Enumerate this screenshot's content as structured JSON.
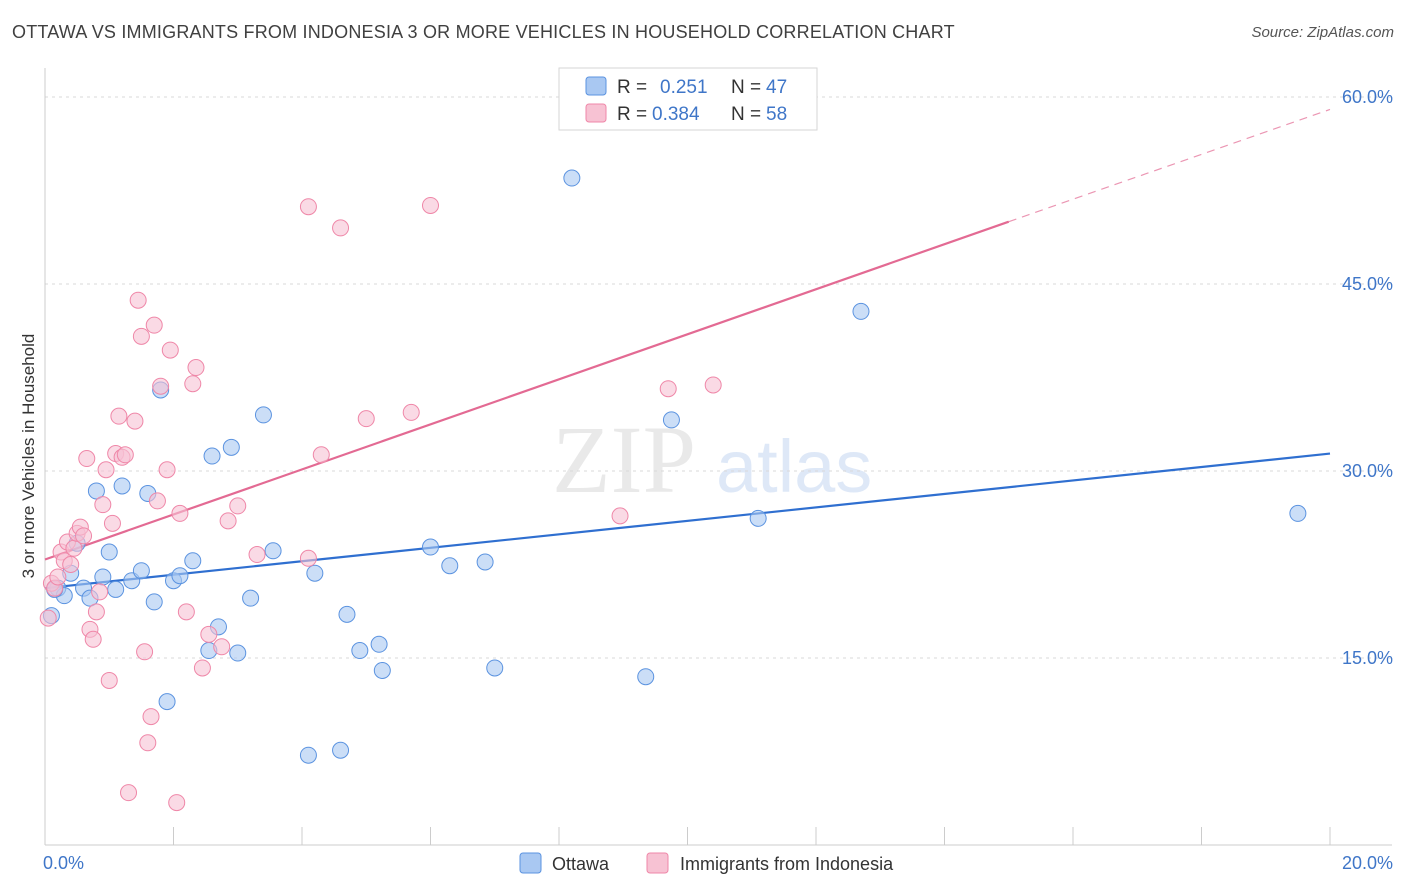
{
  "title": "OTTAWA VS IMMIGRANTS FROM INDONESIA 3 OR MORE VEHICLES IN HOUSEHOLD CORRELATION CHART",
  "source": "Source: ZipAtlas.com",
  "watermark": {
    "zip": "ZIP",
    "atlas": "atlas"
  },
  "colors": {
    "ottawa": "#5b93e0",
    "ottawa_fill": "#a9c8f2",
    "indonesia": "#ef87a8",
    "indonesia_fill": "#f7c2d3",
    "ottawa_line": "#2f6fd0",
    "indonesia_line": "#e36a93",
    "grid": "#d9d9d9",
    "tick_label": "#3f76c8"
  },
  "legend": {
    "rows": [
      {
        "r_label": "R =",
        "r_value": "0.251",
        "n_label": "N =",
        "n_value": "47"
      },
      {
        "r_label": "R =",
        "r_value": "0.384",
        "n_label": "N =",
        "n_value": "58"
      }
    ]
  },
  "chart_data": {
    "type": "scatter",
    "title": "OTTAWA VS IMMIGRANTS FROM INDONESIA 3 OR MORE VEHICLES IN HOUSEHOLD CORRELATION CHART",
    "xlabel": "",
    "ylabel": "3 or more Vehicles in Household",
    "xlim": [
      0,
      20
    ],
    "ylim": [
      0,
      60
    ],
    "x_tick_labels": [
      "0.0%",
      "20.0%"
    ],
    "y_ticks": [
      15,
      30,
      45,
      60
    ],
    "y_tick_labels": [
      "15.0%",
      "30.0%",
      "45.0%",
      "60.0%"
    ],
    "grid": true,
    "legend_position": "bottom-center",
    "series": [
      {
        "name": "Ottawa",
        "r": 0.251,
        "n": 47,
        "trend": {
          "x": [
            0,
            20
          ],
          "y": [
            20.6,
            31.4
          ]
        },
        "points": [
          [
            0.1,
            18.4
          ],
          [
            0.2,
            20.6
          ],
          [
            0.3,
            20.0
          ],
          [
            0.4,
            21.8
          ],
          [
            0.5,
            24.2
          ],
          [
            0.6,
            20.6
          ],
          [
            0.7,
            19.8
          ],
          [
            0.8,
            28.4
          ],
          [
            0.9,
            21.5
          ],
          [
            1.0,
            23.5
          ],
          [
            1.1,
            20.5
          ],
          [
            1.2,
            28.8
          ],
          [
            1.35,
            21.2
          ],
          [
            1.5,
            22.0
          ],
          [
            1.6,
            28.2
          ],
          [
            1.7,
            19.5
          ],
          [
            1.8,
            36.5
          ],
          [
            1.9,
            11.5
          ],
          [
            2.0,
            21.2
          ],
          [
            2.1,
            21.6
          ],
          [
            2.3,
            22.8
          ],
          [
            2.55,
            15.6
          ],
          [
            2.6,
            31.2
          ],
          [
            2.7,
            17.5
          ],
          [
            2.9,
            31.9
          ],
          [
            3.0,
            15.4
          ],
          [
            3.2,
            19.8
          ],
          [
            3.4,
            34.5
          ],
          [
            3.55,
            23.6
          ],
          [
            4.1,
            7.2
          ],
          [
            4.2,
            21.8
          ],
          [
            4.6,
            7.6
          ],
          [
            4.7,
            18.5
          ],
          [
            4.9,
            15.6
          ],
          [
            5.2,
            16.1
          ],
          [
            5.25,
            14.0
          ],
          [
            6.0,
            23.9
          ],
          [
            6.3,
            22.4
          ],
          [
            6.85,
            22.7
          ],
          [
            7.0,
            14.2
          ],
          [
            8.2,
            53.5
          ],
          [
            9.35,
            13.5
          ],
          [
            9.75,
            34.1
          ],
          [
            11.1,
            26.2
          ],
          [
            12.7,
            42.8
          ],
          [
            19.5,
            26.6
          ],
          [
            0.15,
            20.5
          ]
        ]
      },
      {
        "name": "Immigrants from Indonesia",
        "r": 0.384,
        "n": 58,
        "trend": {
          "x": [
            0,
            15
          ],
          "y": [
            22.9,
            50.0
          ]
        },
        "trend_dashed": {
          "x": [
            15,
            20
          ],
          "y": [
            50.0,
            59.0
          ]
        },
        "points": [
          [
            0.05,
            18.2
          ],
          [
            0.1,
            21.0
          ],
          [
            0.15,
            20.6
          ],
          [
            0.2,
            21.5
          ],
          [
            0.25,
            23.5
          ],
          [
            0.3,
            22.8
          ],
          [
            0.35,
            24.3
          ],
          [
            0.4,
            22.5
          ],
          [
            0.45,
            23.8
          ],
          [
            0.5,
            25.0
          ],
          [
            0.55,
            25.5
          ],
          [
            0.6,
            24.8
          ],
          [
            0.65,
            31.0
          ],
          [
            0.7,
            17.3
          ],
          [
            0.75,
            16.5
          ],
          [
            0.8,
            18.7
          ],
          [
            0.85,
            20.3
          ],
          [
            0.9,
            27.3
          ],
          [
            0.95,
            30.1
          ],
          [
            1.0,
            13.2
          ],
          [
            1.05,
            25.8
          ],
          [
            1.1,
            31.4
          ],
          [
            1.15,
            34.4
          ],
          [
            1.2,
            31.1
          ],
          [
            1.25,
            31.3
          ],
          [
            1.3,
            4.2
          ],
          [
            1.4,
            34.0
          ],
          [
            1.45,
            43.7
          ],
          [
            1.5,
            40.8
          ],
          [
            1.55,
            15.5
          ],
          [
            1.6,
            8.2
          ],
          [
            1.65,
            10.3
          ],
          [
            1.7,
            41.7
          ],
          [
            1.75,
            27.6
          ],
          [
            1.8,
            36.8
          ],
          [
            1.9,
            30.1
          ],
          [
            1.95,
            39.7
          ],
          [
            2.05,
            3.4
          ],
          [
            2.1,
            26.6
          ],
          [
            2.2,
            18.7
          ],
          [
            2.3,
            37.0
          ],
          [
            2.35,
            38.3
          ],
          [
            2.45,
            14.2
          ],
          [
            2.55,
            16.9
          ],
          [
            2.75,
            15.9
          ],
          [
            2.85,
            26.0
          ],
          [
            3.0,
            27.2
          ],
          [
            3.3,
            23.3
          ],
          [
            4.1,
            51.2
          ],
          [
            4.1,
            23.0
          ],
          [
            4.3,
            31.3
          ],
          [
            4.6,
            49.5
          ],
          [
            5.0,
            34.2
          ],
          [
            5.7,
            34.7
          ],
          [
            6.0,
            51.3
          ],
          [
            8.95,
            26.4
          ],
          [
            9.7,
            36.6
          ],
          [
            10.4,
            36.9
          ]
        ]
      }
    ]
  },
  "bottom_legend": [
    {
      "label": "Ottawa"
    },
    {
      "label": "Immigrants from Indonesia"
    }
  ]
}
